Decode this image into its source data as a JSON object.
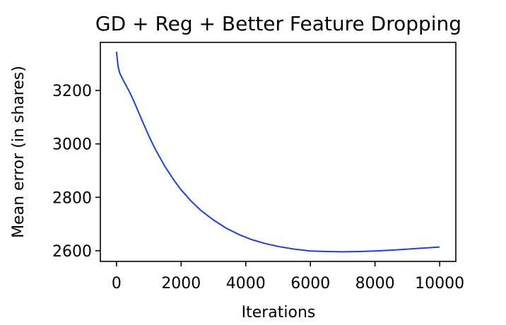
{
  "chart_data": {
    "type": "line",
    "title": "GD + Reg + Better Feature Dropping",
    "xlabel": "Iterations",
    "ylabel": "Mean error (in shares)",
    "xlim": [
      -500,
      10500
    ],
    "ylim": [
      2560,
      3380
    ],
    "xticks": [
      0,
      2000,
      4000,
      6000,
      8000,
      10000
    ],
    "yticks": [
      2600,
      2800,
      3000,
      3200
    ],
    "grid": false,
    "series": [
      {
        "color": "#1f3fd8",
        "x": [
          0,
          50,
          100,
          200,
          300,
          400,
          500,
          600,
          800,
          1000,
          1200,
          1500,
          1800,
          2000,
          2300,
          2600,
          3000,
          3400,
          3800,
          4200,
          4600,
          5000,
          5500,
          6000,
          6500,
          7000,
          7500,
          8000,
          8500,
          9000,
          9500,
          10000
        ],
        "y": [
          3345,
          3290,
          3265,
          3240,
          3218,
          3195,
          3170,
          3142,
          3085,
          3030,
          2980,
          2915,
          2860,
          2828,
          2787,
          2752,
          2715,
          2684,
          2660,
          2641,
          2627,
          2616,
          2606,
          2599,
          2597,
          2596,
          2597,
          2599,
          2602,
          2606,
          2610,
          2614
        ]
      }
    ]
  }
}
